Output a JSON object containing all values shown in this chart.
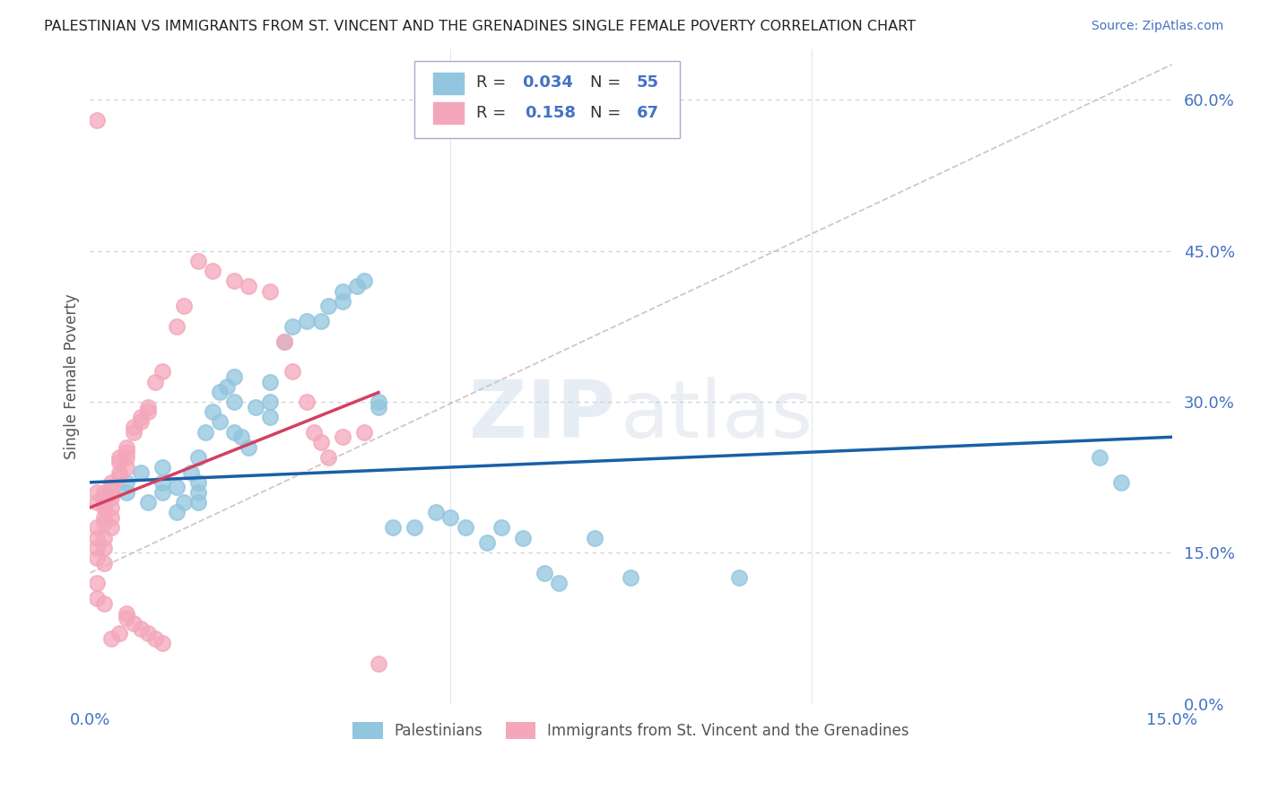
{
  "title": "PALESTINIAN VS IMMIGRANTS FROM ST. VINCENT AND THE GRENADINES SINGLE FEMALE POVERTY CORRELATION CHART",
  "source": "Source: ZipAtlas.com",
  "ylabel": "Single Female Poverty",
  "xlim": [
    0.0,
    0.15
  ],
  "ylim": [
    0.0,
    0.65
  ],
  "yticks": [
    0.0,
    0.15,
    0.3,
    0.45,
    0.6
  ],
  "xticks": [
    0.0,
    0.15
  ],
  "watermark_zip": "ZIP",
  "watermark_atlas": "atlas",
  "color_blue": "#92c5de",
  "color_pink": "#f4a7bb",
  "line_blue": "#1a5fa8",
  "line_pink": "#d44060",
  "line_diag": "#c8b0b8",
  "blue_x": [
    0.005,
    0.005,
    0.007,
    0.008,
    0.01,
    0.01,
    0.01,
    0.012,
    0.012,
    0.013,
    0.014,
    0.015,
    0.015,
    0.015,
    0.015,
    0.016,
    0.017,
    0.018,
    0.018,
    0.019,
    0.02,
    0.02,
    0.02,
    0.021,
    0.022,
    0.023,
    0.025,
    0.025,
    0.025,
    0.027,
    0.028,
    0.03,
    0.032,
    0.033,
    0.035,
    0.035,
    0.037,
    0.038,
    0.04,
    0.04,
    0.042,
    0.045,
    0.048,
    0.05,
    0.052,
    0.055,
    0.057,
    0.06,
    0.063,
    0.065,
    0.07,
    0.075,
    0.09,
    0.14,
    0.143
  ],
  "blue_y": [
    0.22,
    0.21,
    0.23,
    0.2,
    0.22,
    0.235,
    0.21,
    0.215,
    0.19,
    0.2,
    0.23,
    0.22,
    0.21,
    0.2,
    0.245,
    0.27,
    0.29,
    0.28,
    0.31,
    0.315,
    0.325,
    0.3,
    0.27,
    0.265,
    0.255,
    0.295,
    0.3,
    0.285,
    0.32,
    0.36,
    0.375,
    0.38,
    0.38,
    0.395,
    0.4,
    0.41,
    0.415,
    0.42,
    0.295,
    0.3,
    0.175,
    0.175,
    0.19,
    0.185,
    0.175,
    0.16,
    0.175,
    0.165,
    0.13,
    0.12,
    0.165,
    0.125,
    0.125,
    0.245,
    0.22
  ],
  "pink_x": [
    0.001,
    0.001,
    0.001,
    0.001,
    0.001,
    0.001,
    0.001,
    0.001,
    0.001,
    0.002,
    0.002,
    0.002,
    0.002,
    0.002,
    0.002,
    0.002,
    0.002,
    0.002,
    0.002,
    0.003,
    0.003,
    0.003,
    0.003,
    0.003,
    0.003,
    0.003,
    0.003,
    0.004,
    0.004,
    0.004,
    0.004,
    0.004,
    0.005,
    0.005,
    0.005,
    0.005,
    0.005,
    0.005,
    0.006,
    0.006,
    0.006,
    0.007,
    0.007,
    0.007,
    0.008,
    0.008,
    0.008,
    0.009,
    0.009,
    0.01,
    0.01,
    0.012,
    0.013,
    0.015,
    0.017,
    0.02,
    0.022,
    0.025,
    0.027,
    0.028,
    0.03,
    0.031,
    0.032,
    0.033,
    0.035,
    0.038,
    0.04
  ],
  "pink_y": [
    0.58,
    0.21,
    0.2,
    0.175,
    0.165,
    0.155,
    0.145,
    0.12,
    0.105,
    0.21,
    0.205,
    0.2,
    0.195,
    0.185,
    0.18,
    0.165,
    0.155,
    0.14,
    0.1,
    0.22,
    0.215,
    0.21,
    0.205,
    0.195,
    0.185,
    0.175,
    0.065,
    0.245,
    0.24,
    0.23,
    0.225,
    0.07,
    0.255,
    0.25,
    0.245,
    0.235,
    0.09,
    0.085,
    0.275,
    0.27,
    0.08,
    0.285,
    0.28,
    0.075,
    0.295,
    0.29,
    0.07,
    0.32,
    0.065,
    0.33,
    0.06,
    0.375,
    0.395,
    0.44,
    0.43,
    0.42,
    0.415,
    0.41,
    0.36,
    0.33,
    0.3,
    0.27,
    0.26,
    0.245,
    0.265,
    0.27,
    0.04
  ]
}
